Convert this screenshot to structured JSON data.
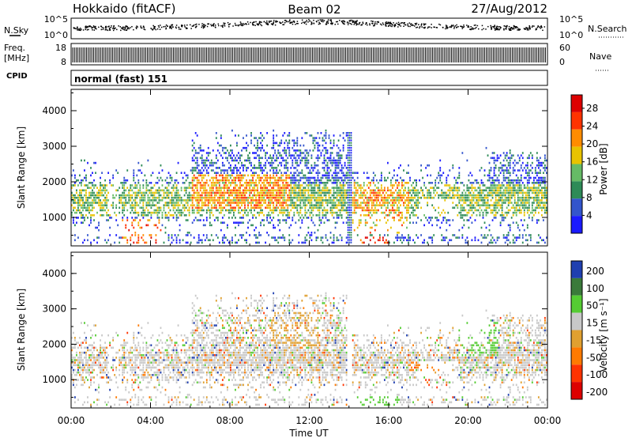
{
  "header": {
    "station": "Hokkaido (fitACF)",
    "beam": "Beam 02",
    "date": "27/Aug/2012"
  },
  "strips": {
    "nsky_label": "N.Sky",
    "nsky_ticks": [
      "10^5",
      "10^0"
    ],
    "nsearch_label": "N.Search",
    "nsearch_ticks": [
      "10^5",
      "10^0"
    ],
    "freq_label_line1": "Freq.",
    "freq_label_line2": "[MHz]",
    "freq_ticks": [
      "18",
      "8"
    ],
    "nave_label": "Nave",
    "nave_ticks": [
      "60",
      "0"
    ],
    "cpid_label": "CPID",
    "cpid_text": "normal (fast) 151"
  },
  "chart_data": [
    {
      "type": "heatmap",
      "panel": "power",
      "ylabel": "Slant Range [km]",
      "yticks": [
        "1000",
        "2000",
        "3000",
        "4000"
      ],
      "ylim": [
        200,
        4600
      ],
      "colorbar_label": "Power [dB]",
      "colorbar_ticks": [
        "4",
        "8",
        "12",
        "16",
        "20",
        "24",
        "28"
      ],
      "colorbar_range": [
        0,
        31
      ],
      "colors": [
        "#1a1aff",
        "#3355cc",
        "#2e8b57",
        "#66bb66",
        "#e8c300",
        "#ff8c00",
        "#ff3300",
        "#dd0000"
      ]
    },
    {
      "type": "heatmap",
      "panel": "velocity",
      "ylabel": "Slant Range [km]",
      "yticks": [
        "1000",
        "2000",
        "3000",
        "4000"
      ],
      "ylim": [
        200,
        4600
      ],
      "colorbar_label": "Velocity [m s⁻¹]",
      "colorbar_ticks": [
        "200",
        "100",
        "50",
        "15",
        "-15",
        "-50",
        "-100",
        "-200"
      ],
      "colors": [
        "#1f3fb0",
        "#3a7a3a",
        "#55cc33",
        "#c8c8c8",
        "#e0a030",
        "#ff7a00",
        "#ff3300",
        "#dd0000"
      ]
    }
  ],
  "xaxis": {
    "label": "Time UT",
    "ticks": [
      "00:00",
      "04:00",
      "08:00",
      "12:00",
      "16:00",
      "20:00",
      "00:00"
    ],
    "range_hours": [
      0,
      24
    ]
  }
}
